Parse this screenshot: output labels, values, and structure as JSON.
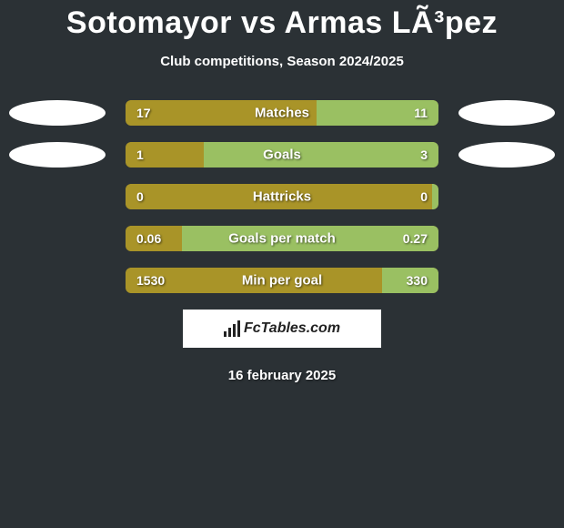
{
  "title": "Sotomayor vs Armas LÃ³pez",
  "subtitle": "Club competitions, Season 2024/2025",
  "date": "16 february 2025",
  "brand": "FcTables.com",
  "colors": {
    "background": "#2b3135",
    "left_fill": "#a99428",
    "right_fill": "#9ac062",
    "bar_bg": "#a99428",
    "ellipse": "#ffffff",
    "text": "#ffffff"
  },
  "stats": [
    {
      "label": "Matches",
      "left_val": "17",
      "right_val": "11",
      "left_pct": 61,
      "right_pct": 39,
      "show_left_ellipse": true,
      "show_right_ellipse": true
    },
    {
      "label": "Goals",
      "left_val": "1",
      "right_val": "3",
      "left_pct": 25,
      "right_pct": 75,
      "show_left_ellipse": true,
      "show_right_ellipse": true
    },
    {
      "label": "Hattricks",
      "left_val": "0",
      "right_val": "0",
      "left_pct": 2,
      "right_pct": 2,
      "show_left_ellipse": false,
      "show_right_ellipse": false
    },
    {
      "label": "Goals per match",
      "left_val": "0.06",
      "right_val": "0.27",
      "left_pct": 18,
      "right_pct": 82,
      "show_left_ellipse": false,
      "show_right_ellipse": false
    },
    {
      "label": "Min per goal",
      "left_val": "1530",
      "right_val": "330",
      "left_pct": 82,
      "right_pct": 18,
      "show_left_ellipse": false,
      "show_right_ellipse": false
    }
  ]
}
